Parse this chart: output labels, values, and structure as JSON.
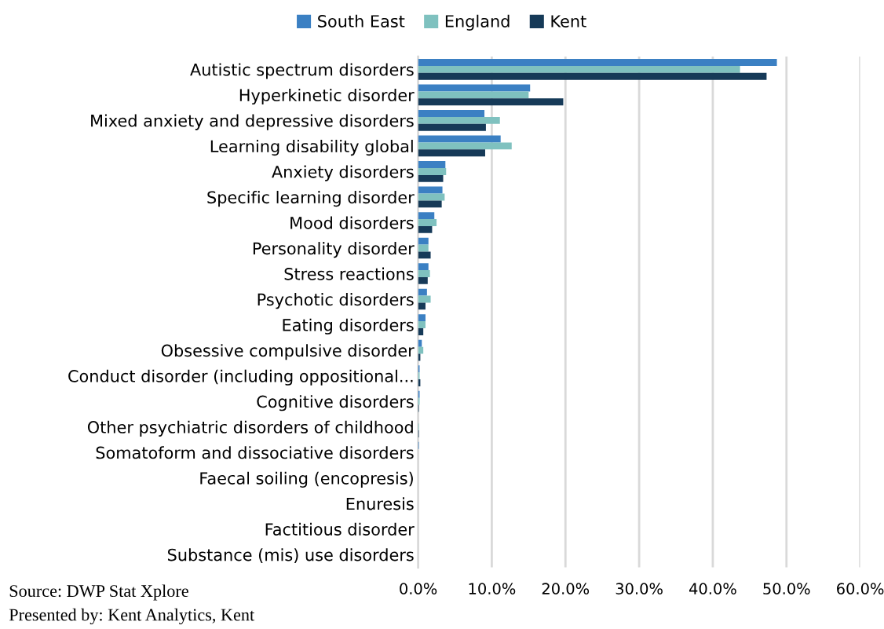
{
  "chart_data": {
    "type": "bar",
    "orientation": "horizontal",
    "categories": [
      "Autistic spectrum disorders",
      "Hyperkinetic disorder",
      "Mixed anxiety and depressive disorders",
      "Learning disability global",
      "Anxiety disorders",
      "Specific learning disorder",
      "Mood disorders",
      "Personality disorder",
      "Stress reactions",
      "Psychotic disorders",
      "Eating disorders",
      "Obsessive compulsive disorder",
      "Conduct disorder (including oppositional...",
      "Cognitive disorders",
      "Other psychiatric disorders of childhood",
      "Somatoform and dissociative disorders",
      "Faecal soiling (encopresis)",
      "Enuresis",
      "Factitious disorder",
      "Substance (mis) use disorders"
    ],
    "series": [
      {
        "name": "South East",
        "color": "#3b80c3",
        "values": [
          48.7,
          15.2,
          9.0,
          11.2,
          3.7,
          3.3,
          2.2,
          1.4,
          1.4,
          1.2,
          1.0,
          0.5,
          0.2,
          0.2,
          0.0,
          0.1,
          0.0,
          0.0,
          0.0,
          0.0
        ]
      },
      {
        "name": "England",
        "color": "#7fc1bf",
        "values": [
          43.7,
          15.0,
          11.1,
          12.7,
          3.8,
          3.6,
          2.5,
          1.4,
          1.6,
          1.7,
          1.0,
          0.7,
          0.2,
          0.2,
          0.1,
          0.0,
          0.0,
          0.0,
          0.0,
          0.0
        ]
      },
      {
        "name": "Kent",
        "color": "#163a58",
        "values": [
          47.3,
          19.7,
          9.2,
          9.1,
          3.4,
          3.2,
          1.9,
          1.7,
          1.3,
          1.0,
          0.7,
          0.3,
          0.3,
          0.1,
          0.1,
          0.0,
          0.0,
          0.0,
          0.0,
          0.0
        ]
      }
    ],
    "xlim": [
      0,
      60
    ],
    "xticks": [
      {
        "value": 0,
        "label": "0.0%"
      },
      {
        "value": 10,
        "label": "10.0%"
      },
      {
        "value": 20,
        "label": "20.0%"
      },
      {
        "value": 30,
        "label": "30.0%"
      },
      {
        "value": 40,
        "label": "40.0%"
      },
      {
        "value": 50,
        "label": "50.0%"
      },
      {
        "value": 60,
        "label": "60.0%"
      }
    ],
    "grid": "x",
    "legend": "top",
    "annotations": [
      "Source: DWP Stat Xplore",
      "Presented by: Kent Analytics, Kent"
    ]
  }
}
